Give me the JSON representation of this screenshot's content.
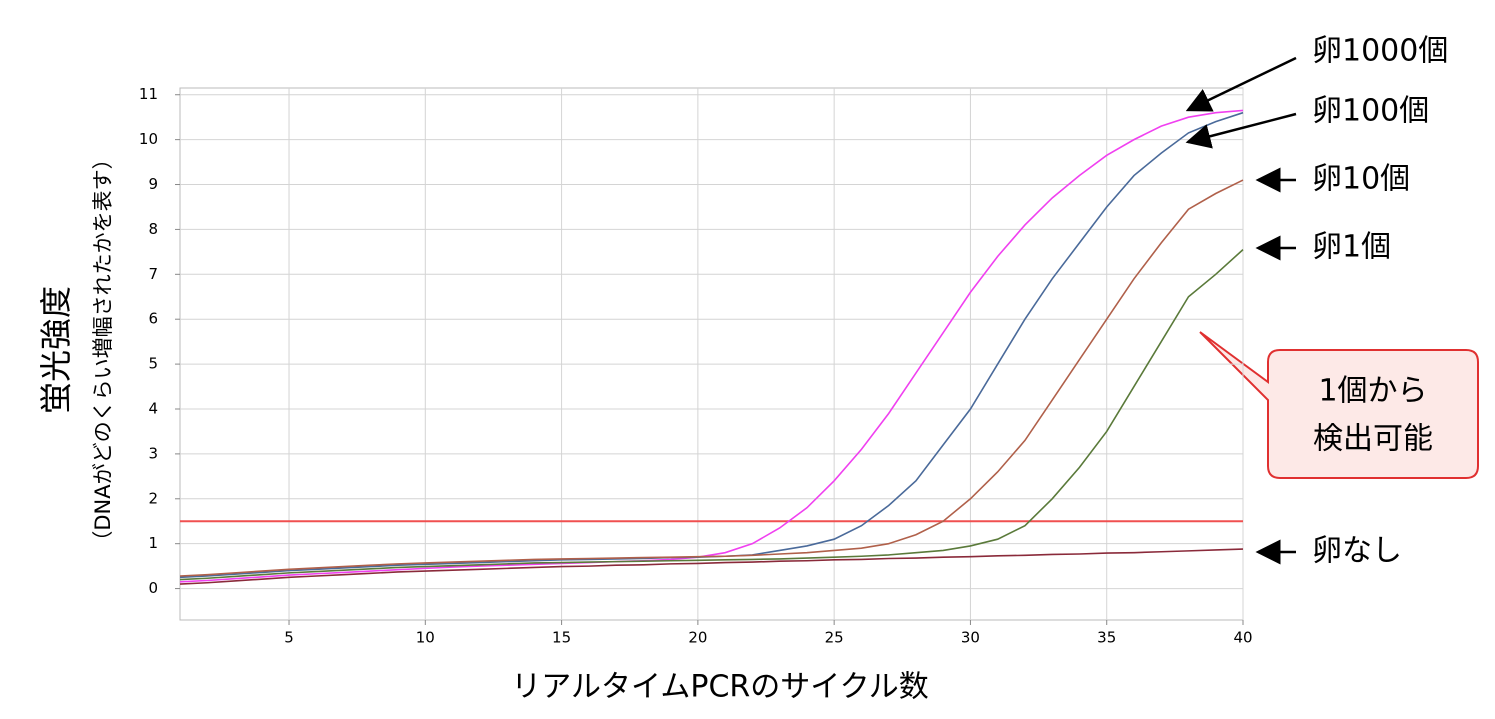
{
  "chart_data": {
    "type": "line",
    "x_label": "リアルタイムPCRのサイクル数",
    "y_label": "蛍光強度",
    "y_sublabel": "（DNAがどのくらい増幅されたかを表す）",
    "x": [
      1,
      2,
      3,
      4,
      5,
      6,
      7,
      8,
      9,
      10,
      11,
      12,
      13,
      14,
      15,
      16,
      17,
      18,
      19,
      20,
      21,
      22,
      23,
      24,
      25,
      26,
      27,
      28,
      29,
      30,
      31,
      32,
      33,
      34,
      35,
      36,
      37,
      38,
      39,
      40
    ],
    "series": [
      {
        "name": "卵1000個",
        "color": "#f040f0",
        "values": [
          0.15,
          0.18,
          0.22,
          0.26,
          0.3,
          0.33,
          0.36,
          0.39,
          0.42,
          0.45,
          0.48,
          0.5,
          0.52,
          0.54,
          0.56,
          0.58,
          0.6,
          0.62,
          0.65,
          0.7,
          0.8,
          1.0,
          1.35,
          1.8,
          2.4,
          3.1,
          3.9,
          4.8,
          5.7,
          6.6,
          7.4,
          8.1,
          8.7,
          9.2,
          9.65,
          10.0,
          10.3,
          10.5,
          10.6,
          10.65
        ]
      },
      {
        "name": "卵100個",
        "color": "#4a6a9a",
        "values": [
          0.25,
          0.28,
          0.32,
          0.36,
          0.4,
          0.43,
          0.46,
          0.49,
          0.52,
          0.54,
          0.56,
          0.58,
          0.6,
          0.62,
          0.64,
          0.65,
          0.66,
          0.67,
          0.69,
          0.7,
          0.72,
          0.75,
          0.85,
          0.95,
          1.1,
          1.4,
          1.85,
          2.4,
          3.2,
          4.0,
          5.0,
          6.0,
          6.9,
          7.7,
          8.5,
          9.2,
          9.7,
          10.15,
          10.4,
          10.6
        ]
      },
      {
        "name": "卵10個",
        "color": "#b0604a",
        "values": [
          0.28,
          0.31,
          0.35,
          0.39,
          0.43,
          0.46,
          0.49,
          0.52,
          0.55,
          0.57,
          0.59,
          0.61,
          0.63,
          0.65,
          0.66,
          0.67,
          0.68,
          0.69,
          0.7,
          0.71,
          0.72,
          0.74,
          0.77,
          0.8,
          0.85,
          0.9,
          1.0,
          1.2,
          1.5,
          2.0,
          2.6,
          3.3,
          4.2,
          5.1,
          6.0,
          6.9,
          7.7,
          8.45,
          8.8,
          9.1
        ]
      },
      {
        "name": "卵1個",
        "color": "#5a7a3a",
        "values": [
          0.2,
          0.23,
          0.27,
          0.31,
          0.35,
          0.38,
          0.41,
          0.44,
          0.47,
          0.49,
          0.51,
          0.53,
          0.55,
          0.57,
          0.58,
          0.59,
          0.6,
          0.61,
          0.62,
          0.63,
          0.64,
          0.65,
          0.66,
          0.68,
          0.7,
          0.72,
          0.75,
          0.8,
          0.85,
          0.95,
          1.1,
          1.4,
          2.0,
          2.7,
          3.5,
          4.5,
          5.5,
          6.5,
          7.0,
          7.55
        ]
      },
      {
        "name": "卵なし",
        "color": "#8a2a3a",
        "values": [
          0.1,
          0.13,
          0.17,
          0.21,
          0.25,
          0.28,
          0.31,
          0.34,
          0.37,
          0.39,
          0.41,
          0.43,
          0.45,
          0.47,
          0.49,
          0.5,
          0.52,
          0.53,
          0.55,
          0.56,
          0.58,
          0.59,
          0.61,
          0.62,
          0.64,
          0.65,
          0.67,
          0.68,
          0.7,
          0.71,
          0.73,
          0.74,
          0.76,
          0.77,
          0.79,
          0.8,
          0.82,
          0.84,
          0.86,
          0.88
        ]
      }
    ],
    "threshold": 1.5,
    "threshold_color": "#f05050",
    "callout": [
      "1個から",
      "検出可能"
    ],
    "xlim": [
      1,
      40
    ],
    "xticks": [
      5,
      10,
      15,
      20,
      25,
      30,
      35,
      40
    ],
    "ylim": [
      -0.7,
      11.15
    ],
    "yticks": [
      0,
      1,
      2,
      3,
      4,
      5,
      6,
      7,
      8,
      9,
      10,
      11
    ],
    "grid": true
  }
}
